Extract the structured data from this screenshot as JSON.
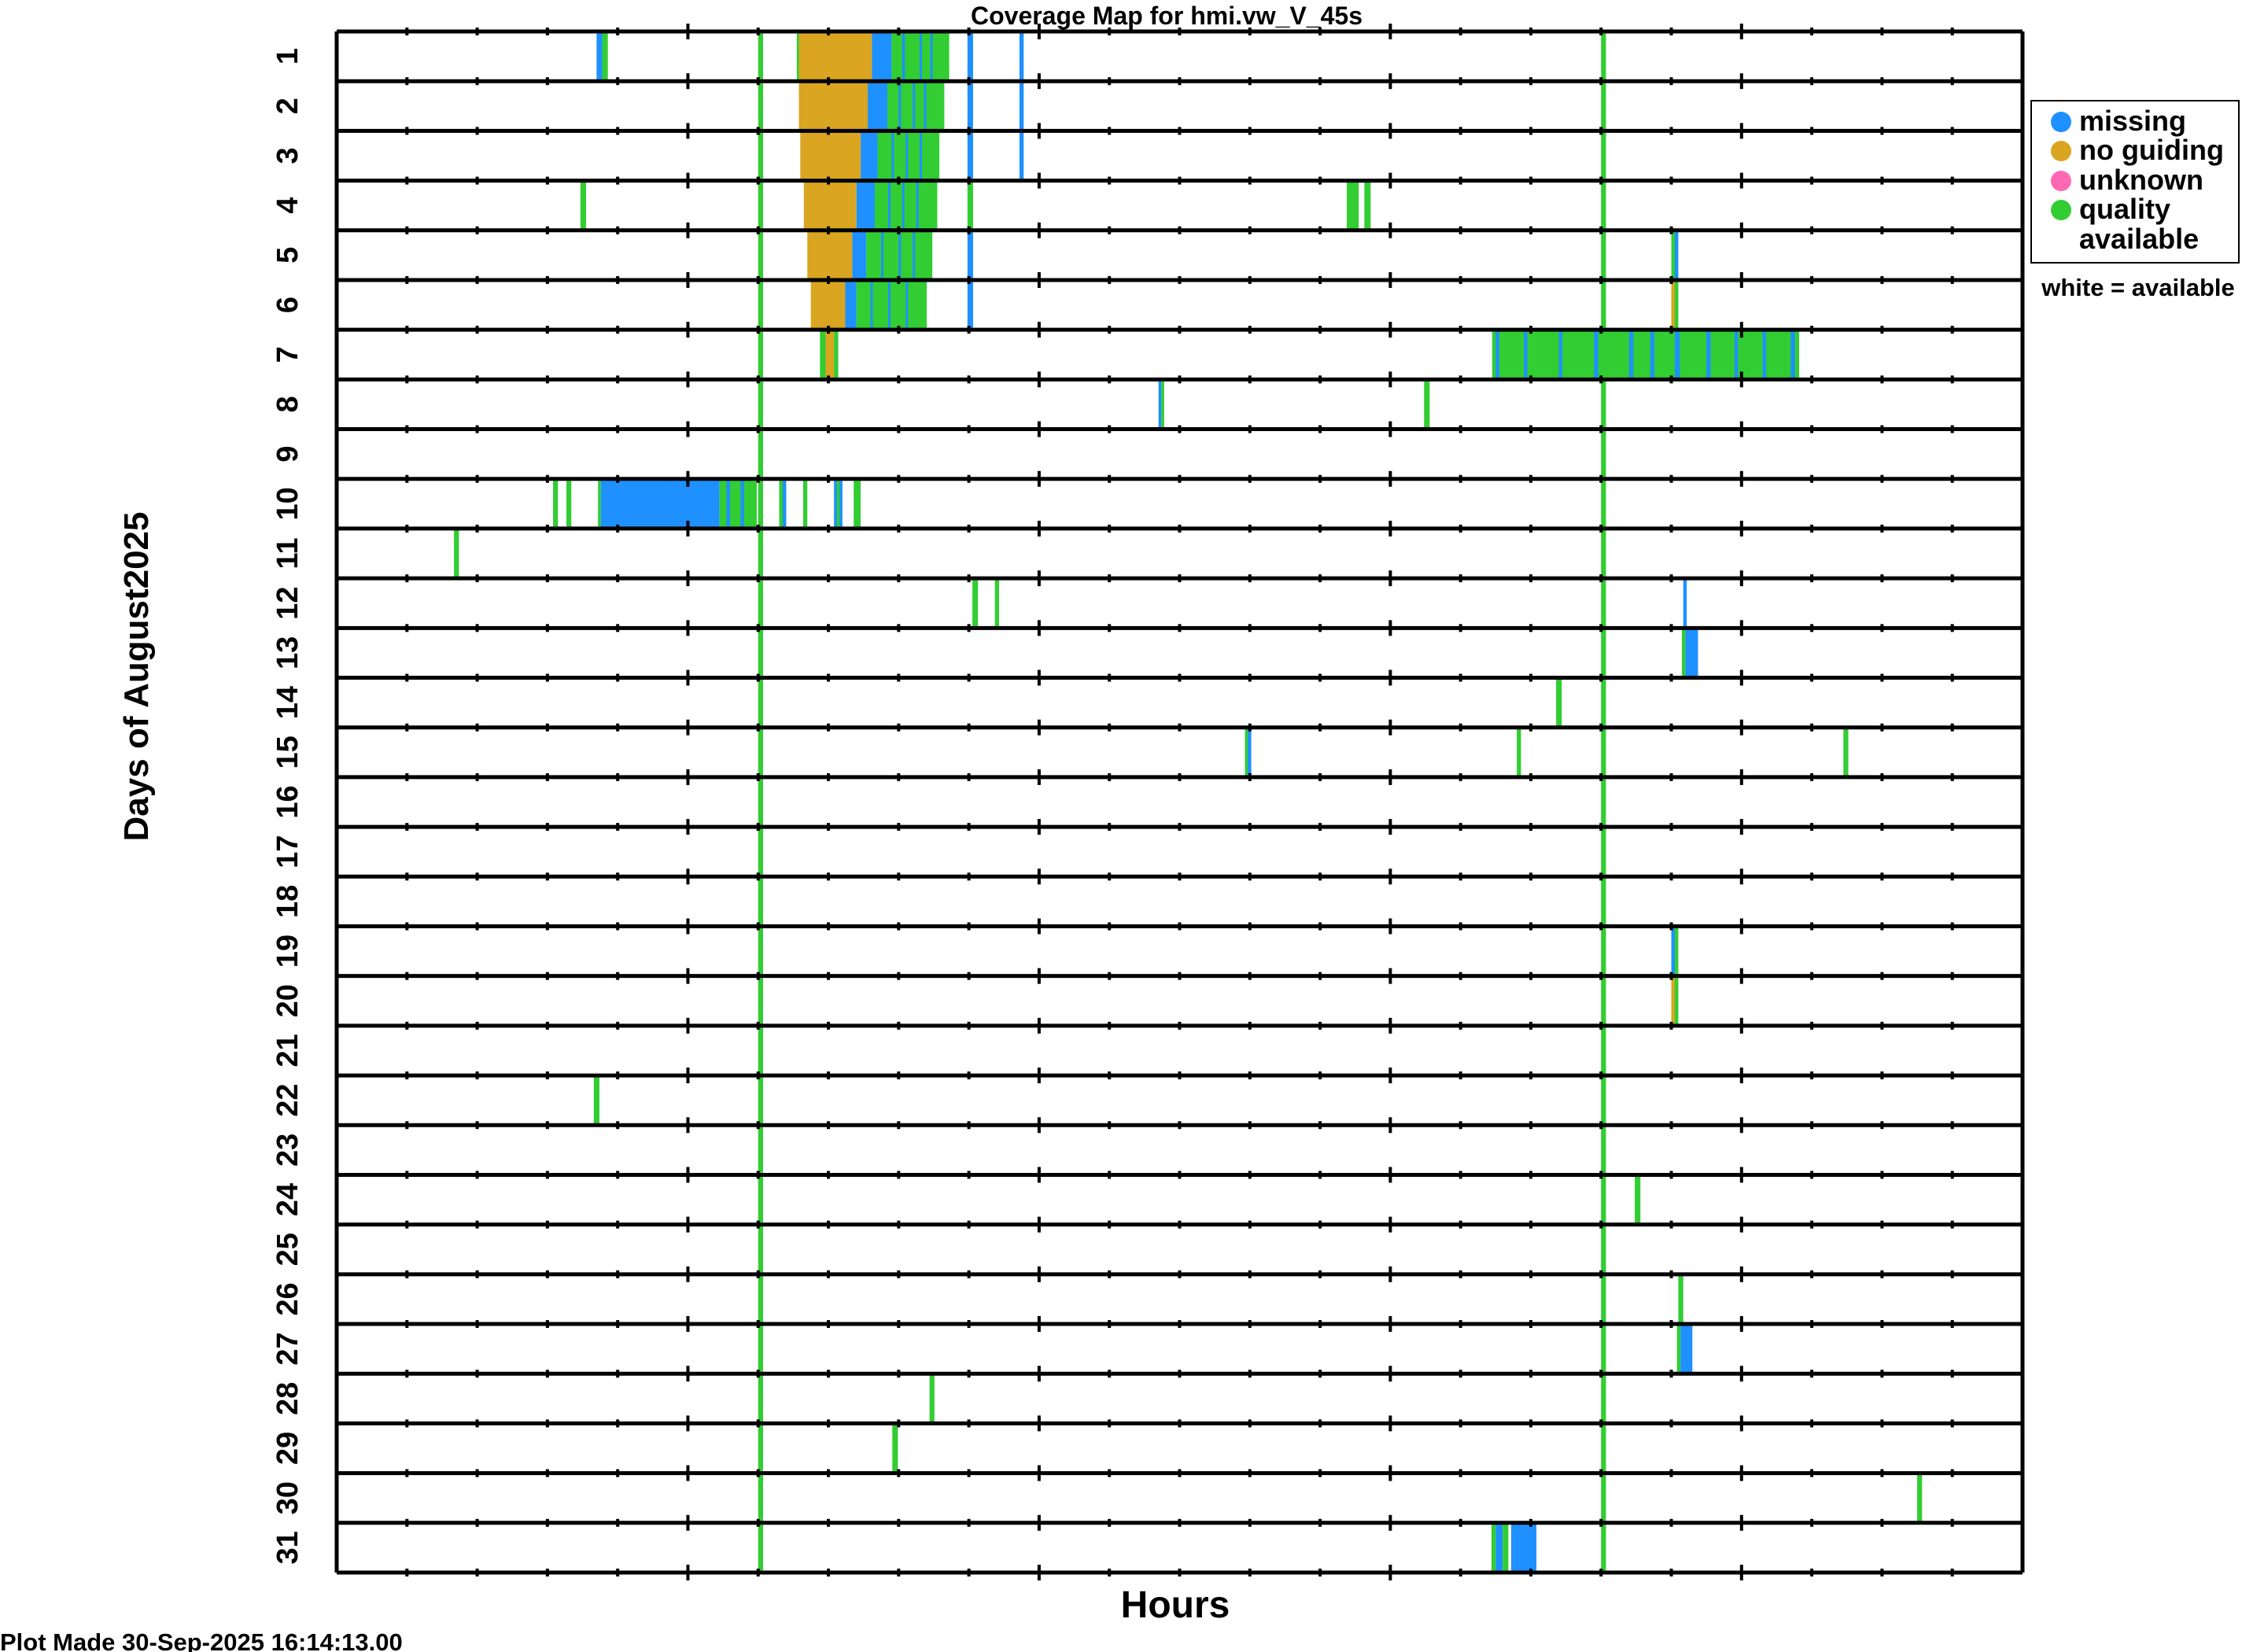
{
  "chart_data": {
    "type": "heatmap",
    "title": "Coverage Map for hmi.vw_V_45s",
    "xlabel": "Hours",
    "ylabel": "Days of August2025",
    "xlim": [
      0,
      24
    ],
    "major_tick_every_hours": 5,
    "minor_tick_every_hours": 1,
    "days": [
      1,
      2,
      3,
      4,
      5,
      6,
      7,
      8,
      9,
      10,
      11,
      12,
      13,
      14,
      15,
      16,
      17,
      18,
      19,
      20,
      21,
      22,
      23,
      24,
      25,
      26,
      27,
      28,
      29,
      30,
      31
    ],
    "legend": {
      "placement": "right",
      "items": [
        {
          "key": "missing",
          "label": "missing",
          "color": "#1e90ff"
        },
        {
          "key": "noguide",
          "label": "no guiding",
          "color": "#daa520"
        },
        {
          "key": "unknown",
          "label": "unknown",
          "color": "#ff69b4"
        },
        {
          "key": "quality",
          "label": "quality",
          "label2": "available",
          "color": "#32cd32"
        }
      ],
      "note": "white = available"
    },
    "all_days_segments": [
      [
        6.0,
        6.07,
        "quality"
      ],
      [
        18.0,
        18.07,
        "quality"
      ]
    ],
    "segments": {
      "1": [
        [
          3.7,
          3.78,
          "missing"
        ],
        [
          3.78,
          3.86,
          "quality"
        ],
        [
          6.55,
          6.58,
          "quality"
        ],
        [
          6.58,
          7.62,
          "noguide"
        ],
        [
          7.62,
          7.9,
          "missing"
        ],
        [
          7.9,
          8.72,
          "quality"
        ],
        [
          8.05,
          8.09,
          "missing"
        ],
        [
          8.3,
          8.33,
          "missing"
        ],
        [
          8.45,
          8.48,
          "missing"
        ],
        [
          8.98,
          9.06,
          "missing"
        ],
        [
          9.72,
          9.78,
          "missing"
        ]
      ],
      "2": [
        [
          6.58,
          7.56,
          "noguide"
        ],
        [
          7.56,
          7.84,
          "missing"
        ],
        [
          7.84,
          8.65,
          "quality"
        ],
        [
          8.0,
          8.03,
          "missing"
        ],
        [
          8.2,
          8.23,
          "missing"
        ],
        [
          8.36,
          8.39,
          "missing"
        ],
        [
          8.98,
          9.06,
          "missing"
        ],
        [
          9.72,
          9.78,
          "missing"
        ]
      ],
      "3": [
        [
          6.6,
          7.46,
          "noguide"
        ],
        [
          7.46,
          7.7,
          "missing"
        ],
        [
          7.7,
          8.58,
          "quality"
        ],
        [
          7.9,
          7.93,
          "missing"
        ],
        [
          8.1,
          8.13,
          "missing"
        ],
        [
          8.3,
          8.33,
          "missing"
        ],
        [
          8.98,
          9.06,
          "missing"
        ],
        [
          9.72,
          9.78,
          "missing"
        ]
      ],
      "4": [
        [
          3.47,
          3.55,
          "quality"
        ],
        [
          6.65,
          7.4,
          "noguide"
        ],
        [
          7.4,
          7.66,
          "missing"
        ],
        [
          7.66,
          8.55,
          "quality"
        ],
        [
          7.85,
          7.88,
          "missing"
        ],
        [
          8.05,
          8.08,
          "missing"
        ],
        [
          8.25,
          8.28,
          "missing"
        ],
        [
          8.98,
          9.06,
          "quality"
        ],
        [
          14.38,
          14.55,
          "quality"
        ],
        [
          14.63,
          14.72,
          "quality"
        ]
      ],
      "5": [
        [
          6.7,
          7.34,
          "noguide"
        ],
        [
          7.34,
          7.54,
          "missing"
        ],
        [
          7.54,
          8.48,
          "quality"
        ],
        [
          7.75,
          7.78,
          "missing"
        ],
        [
          8.0,
          8.03,
          "missing"
        ],
        [
          8.2,
          8.23,
          "missing"
        ],
        [
          8.98,
          9.06,
          "missing"
        ],
        [
          19.0,
          19.05,
          "quality"
        ],
        [
          19.05,
          19.1,
          "missing"
        ]
      ],
      "6": [
        [
          6.75,
          7.24,
          "noguide"
        ],
        [
          7.24,
          7.4,
          "missing"
        ],
        [
          7.4,
          8.4,
          "quality"
        ],
        [
          7.6,
          7.63,
          "missing"
        ],
        [
          7.85,
          7.88,
          "missing"
        ],
        [
          8.1,
          8.13,
          "missing"
        ],
        [
          8.98,
          9.06,
          "missing"
        ],
        [
          19.0,
          19.05,
          "noguide"
        ],
        [
          19.05,
          19.1,
          "quality"
        ]
      ],
      "7": [
        [
          6.88,
          6.96,
          "quality"
        ],
        [
          6.96,
          7.08,
          "noguide"
        ],
        [
          7.08,
          7.14,
          "quality"
        ],
        [
          16.45,
          20.82,
          "quality"
        ],
        [
          16.5,
          16.55,
          "missing"
        ],
        [
          16.9,
          16.95,
          "missing"
        ],
        [
          17.4,
          17.45,
          "missing"
        ],
        [
          17.9,
          17.96,
          "missing"
        ],
        [
          18.4,
          18.46,
          "missing"
        ],
        [
          18.7,
          18.76,
          "missing"
        ],
        [
          19.05,
          19.12,
          "missing"
        ],
        [
          19.5,
          19.56,
          "missing"
        ],
        [
          19.9,
          19.95,
          "missing"
        ],
        [
          20.3,
          20.35,
          "missing"
        ],
        [
          20.7,
          20.76,
          "missing"
        ]
      ],
      "8": [
        [
          11.7,
          11.74,
          "missing"
        ],
        [
          11.74,
          11.78,
          "quality"
        ],
        [
          15.48,
          15.56,
          "quality"
        ]
      ],
      "9": [],
      "10": [
        [
          3.08,
          3.15,
          "quality"
        ],
        [
          3.27,
          3.34,
          "quality"
        ],
        [
          3.72,
          3.76,
          "quality"
        ],
        [
          3.76,
          5.45,
          "missing"
        ],
        [
          5.45,
          5.98,
          "quality"
        ],
        [
          5.55,
          5.6,
          "missing"
        ],
        [
          5.75,
          5.8,
          "missing"
        ],
        [
          6.3,
          6.35,
          "quality"
        ],
        [
          6.35,
          6.4,
          "missing"
        ],
        [
          6.64,
          6.7,
          "quality"
        ],
        [
          7.08,
          7.2,
          "missing"
        ],
        [
          7.12,
          7.16,
          "quality"
        ],
        [
          7.36,
          7.46,
          "quality"
        ]
      ],
      "11": [
        [
          1.67,
          1.74,
          "quality"
        ]
      ],
      "12": [
        [
          9.05,
          9.13,
          "quality"
        ],
        [
          9.37,
          9.43,
          "quality"
        ],
        [
          19.17,
          19.22,
          "missing"
        ]
      ],
      "13": [
        [
          19.15,
          19.2,
          "quality"
        ],
        [
          19.2,
          19.38,
          "missing"
        ]
      ],
      "14": [
        [
          17.36,
          17.44,
          "quality"
        ]
      ],
      "15": [
        [
          12.93,
          12.97,
          "quality"
        ],
        [
          12.97,
          13.02,
          "missing"
        ],
        [
          16.8,
          16.86,
          "quality"
        ],
        [
          21.45,
          21.52,
          "quality"
        ]
      ],
      "16": [],
      "17": [],
      "18": [],
      "19": [
        [
          19.0,
          19.05,
          "missing"
        ],
        [
          19.05,
          19.1,
          "quality"
        ]
      ],
      "20": [
        [
          19.0,
          19.05,
          "noguide"
        ],
        [
          19.05,
          19.1,
          "quality"
        ]
      ],
      "21": [],
      "22": [
        [
          3.66,
          3.74,
          "quality"
        ]
      ],
      "23": [],
      "24": [
        [
          18.48,
          18.56,
          "quality"
        ]
      ],
      "25": [],
      "26": [
        [
          19.1,
          19.17,
          "quality"
        ]
      ],
      "27": [
        [
          19.08,
          19.13,
          "quality"
        ],
        [
          19.13,
          19.3,
          "missing"
        ]
      ],
      "28": [
        [
          8.44,
          8.51,
          "quality"
        ]
      ],
      "29": [
        [
          7.91,
          7.99,
          "quality"
        ]
      ],
      "30": [
        [
          22.5,
          22.57,
          "quality"
        ]
      ],
      "31": [
        [
          16.44,
          16.5,
          "quality"
        ],
        [
          16.5,
          16.6,
          "missing"
        ],
        [
          16.6,
          16.68,
          "quality"
        ],
        [
          16.72,
          17.08,
          "missing"
        ]
      ]
    }
  },
  "footer": "Plot Made 30-Sep-2025 16:14:13.00"
}
